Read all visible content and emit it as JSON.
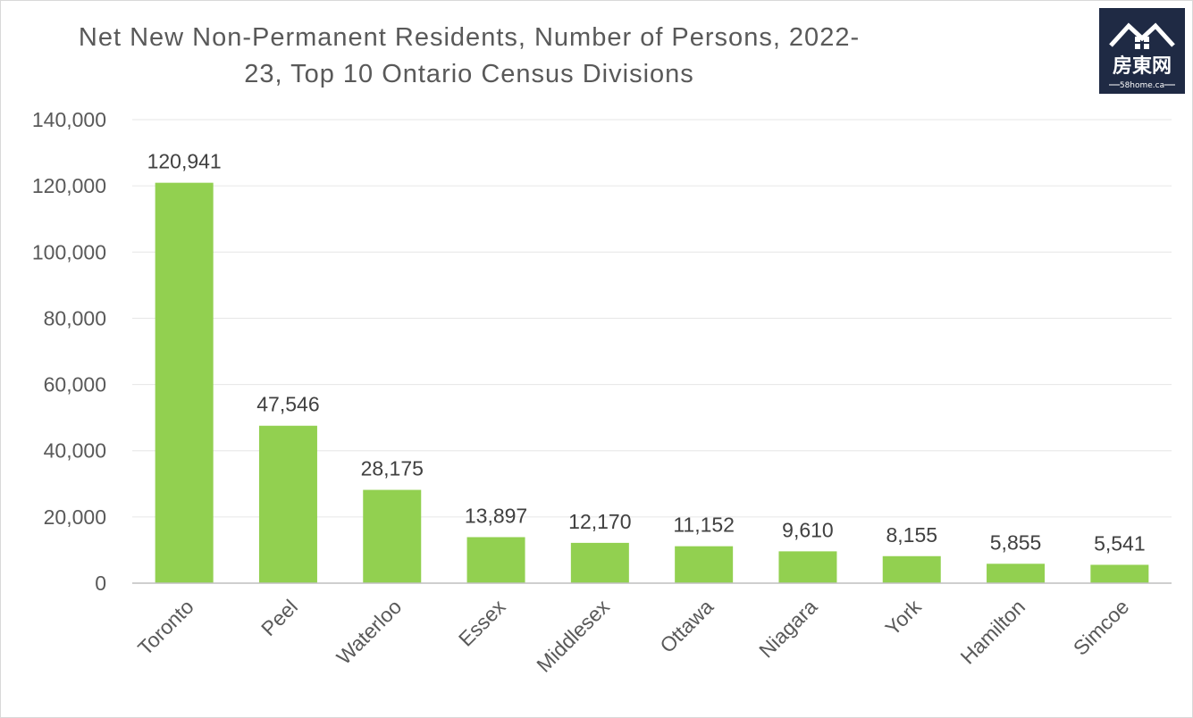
{
  "chart_data": {
    "type": "bar",
    "title_lines": [
      "Net New Non-Permanent Residents, Number of Persons, 2022-",
      "23, Top 10 Ontario Census Divisions"
    ],
    "categories": [
      "Toronto",
      "Peel",
      "Waterloo",
      "Essex",
      "Middlesex",
      "Ottawa",
      "Niagara",
      "York",
      "Hamilton",
      "Simcoe"
    ],
    "values": [
      120941,
      47546,
      28175,
      13897,
      12170,
      11152,
      9610,
      8155,
      5855,
      5541
    ],
    "data_labels": [
      "120,941",
      "47,546",
      "28,175",
      "13,897",
      "12,170",
      "11,152",
      "9,610",
      "8,155",
      "5,855",
      "5,541"
    ],
    "y_ticks": [
      0,
      20000,
      40000,
      60000,
      80000,
      100000,
      120000,
      140000
    ],
    "y_tick_labels": [
      "0",
      "20,000",
      "40,000",
      "60,000",
      "80,000",
      "100,000",
      "120,000",
      "140,000"
    ],
    "ylim": [
      0,
      140000
    ],
    "grid": true,
    "legend": "none",
    "bar_color": "#92d050",
    "gridline_color": "#e6e6e6",
    "axis_color": "#bfbfbf",
    "xlabel": "",
    "ylabel": ""
  },
  "logo": {
    "name": "房東网",
    "url_text": "58home.ca",
    "background": "#1f2a44",
    "icon": "house-roof-icon"
  }
}
